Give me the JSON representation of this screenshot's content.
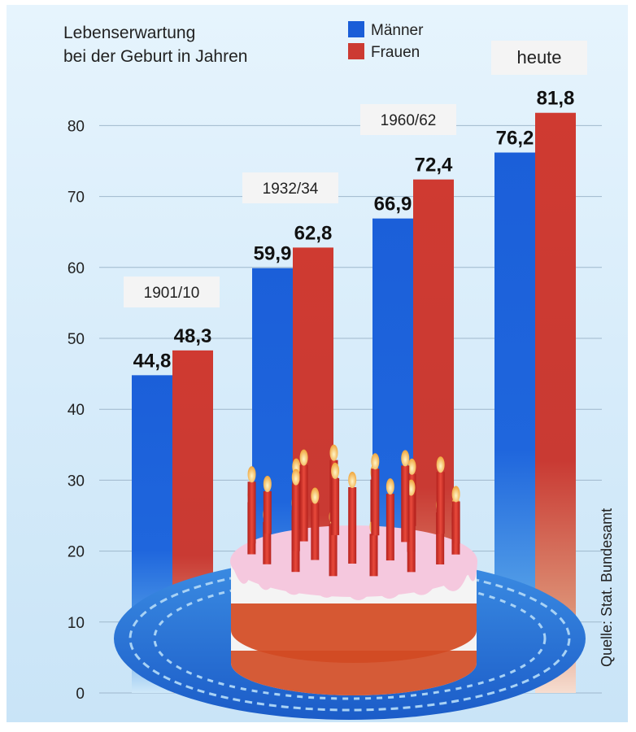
{
  "chart_data": {
    "type": "bar",
    "title_line1": "Lebenserwartung",
    "title_line2": "bei der Geburt in Jahren",
    "categories": [
      "1901/10",
      "1932/34",
      "1960/62",
      "heute"
    ],
    "series": [
      {
        "name": "Männer",
        "values": [
          44.8,
          59.9,
          66.9,
          76.2
        ],
        "value_labels": [
          "44,8",
          "59,9",
          "66,9",
          "76,2"
        ],
        "color": "#1a5ed8"
      },
      {
        "name": "Frauen",
        "values": [
          48.3,
          62.8,
          72.4,
          81.8
        ],
        "value_labels": [
          "48,3",
          "62,8",
          "72,4",
          "81,8"
        ],
        "color": "#cc3a32"
      }
    ],
    "yticks": [
      0,
      10,
      20,
      30,
      40,
      50,
      60,
      70,
      80
    ],
    "ylim": [
      0,
      90
    ],
    "grid": true,
    "legend": "top-center",
    "source": "Quelle: Stat. Bundesamt",
    "colors": {
      "background": "#d6ecfa",
      "grid": "#9fb8cc",
      "tag_box": "#f4f4f4",
      "cake_icing": "#f5c8de",
      "cake_band": "#d24a22"
    }
  }
}
